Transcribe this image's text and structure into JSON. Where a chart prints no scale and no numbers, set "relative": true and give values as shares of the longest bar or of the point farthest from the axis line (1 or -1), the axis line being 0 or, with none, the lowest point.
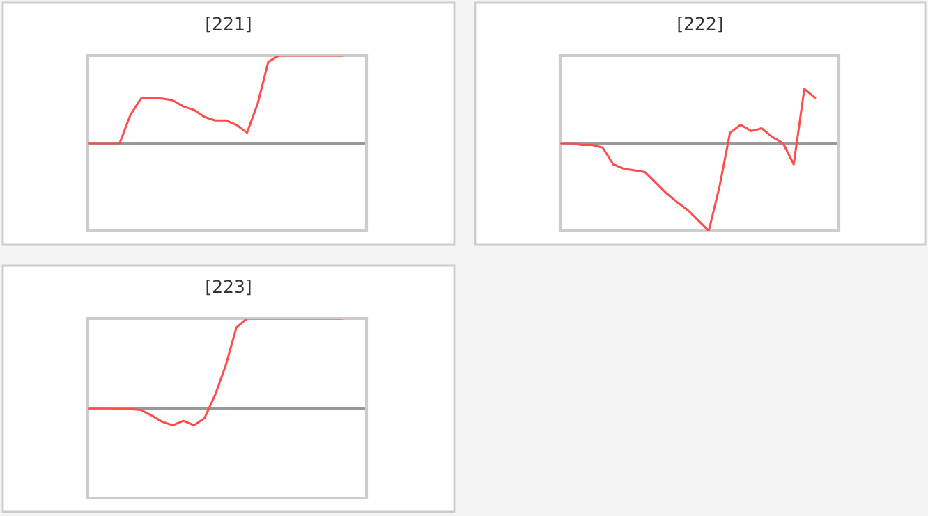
{
  "chart_data": [
    {
      "type": "line",
      "title": "[221]",
      "relative": true,
      "categories": [
        null,
        null,
        null,
        null,
        null,
        null,
        null,
        null,
        null,
        null,
        null,
        null,
        null,
        null,
        null,
        null,
        null,
        null,
        null,
        null,
        null,
        null,
        null,
        null,
        null
      ],
      "series": [
        {
          "color": "#ff4d4d",
          "values": [
            0,
            0,
            0,
            0,
            0.32,
            0.51,
            0.52,
            0.51,
            0.49,
            0.42,
            0.38,
            0.3,
            0.26,
            0.26,
            0.21,
            0.12,
            0.45,
            0.93,
            1,
            1,
            1,
            1,
            1,
            1,
            1
          ]
        }
      ]
    },
    {
      "type": "line",
      "title": "[222]",
      "relative": true,
      "categories": [
        null,
        null,
        null,
        null,
        null,
        null,
        null,
        null,
        null,
        null,
        null,
        null,
        null,
        null,
        null,
        null,
        null,
        null,
        null,
        null,
        null,
        null,
        null,
        null,
        null
      ],
      "series": [
        {
          "color": "#ff4d4d",
          "values": [
            0,
            0,
            -0.02,
            -0.02,
            -0.05,
            -0.24,
            -0.29,
            -0.31,
            -0.33,
            -0.45,
            -0.57,
            -0.67,
            -0.76,
            -0.88,
            -1,
            -0.5,
            0.12,
            0.21,
            0.14,
            0.17,
            0.07,
            0,
            -0.24,
            0.62,
            0.52
          ]
        }
      ]
    },
    {
      "type": "line",
      "title": "[223]",
      "relative": true,
      "categories": [
        null,
        null,
        null,
        null,
        null,
        null,
        null,
        null,
        null,
        null,
        null,
        null,
        null,
        null,
        null,
        null,
        null,
        null,
        null,
        null,
        null,
        null,
        null,
        null,
        null
      ],
      "series": [
        {
          "color": "#ff4d4d",
          "values": [
            0,
            0,
            0,
            -0.01,
            -0.01,
            -0.02,
            -0.08,
            -0.15,
            -0.19,
            -0.14,
            -0.19,
            -0.11,
            0.15,
            0.48,
            0.9,
            1,
            1,
            1,
            1,
            1,
            1,
            1,
            1,
            1,
            1
          ]
        }
      ]
    }
  ]
}
